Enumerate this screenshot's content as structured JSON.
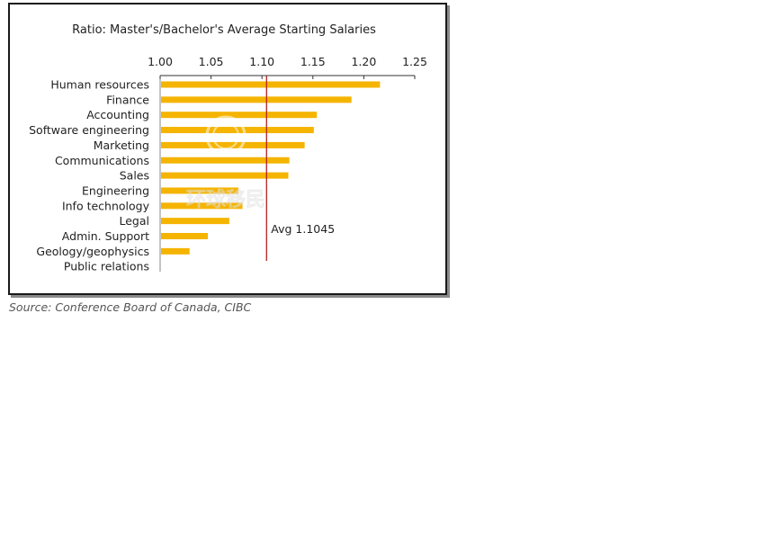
{
  "chart_data": {
    "type": "bar",
    "orientation": "horizontal",
    "title": "Ratio: Master's/Bachelor's Average Starting Salaries",
    "categories": [
      "Human resources",
      "Finance",
      "Accounting",
      "Software engineering",
      "Marketing",
      "Communications",
      "Sales",
      "Engineering",
      "Info technology",
      "Legal",
      "Admin. Support",
      "Geology/geophysics",
      "Public relations"
    ],
    "values": [
      1.215,
      1.187,
      1.153,
      1.15,
      1.141,
      1.126,
      1.125,
      1.076,
      1.08,
      1.067,
      1.046,
      1.028,
      1.0
    ],
    "xlim": [
      1.0,
      1.25
    ],
    "xticks": [
      "1.00",
      "1.05",
      "1.10",
      "1.15",
      "1.20",
      "1.25"
    ],
    "xaxis_position": "top",
    "grid": false,
    "bar_color": "#F5B400",
    "reference_line": {
      "value": 1.1045,
      "label": "Avg 1.1045",
      "color": "#B22222"
    }
  },
  "source": "Source: Conference Board of Canada, CIBC",
  "watermark": {
    "text": "环球移民",
    "subtext": "GLOBEGROUP"
  }
}
